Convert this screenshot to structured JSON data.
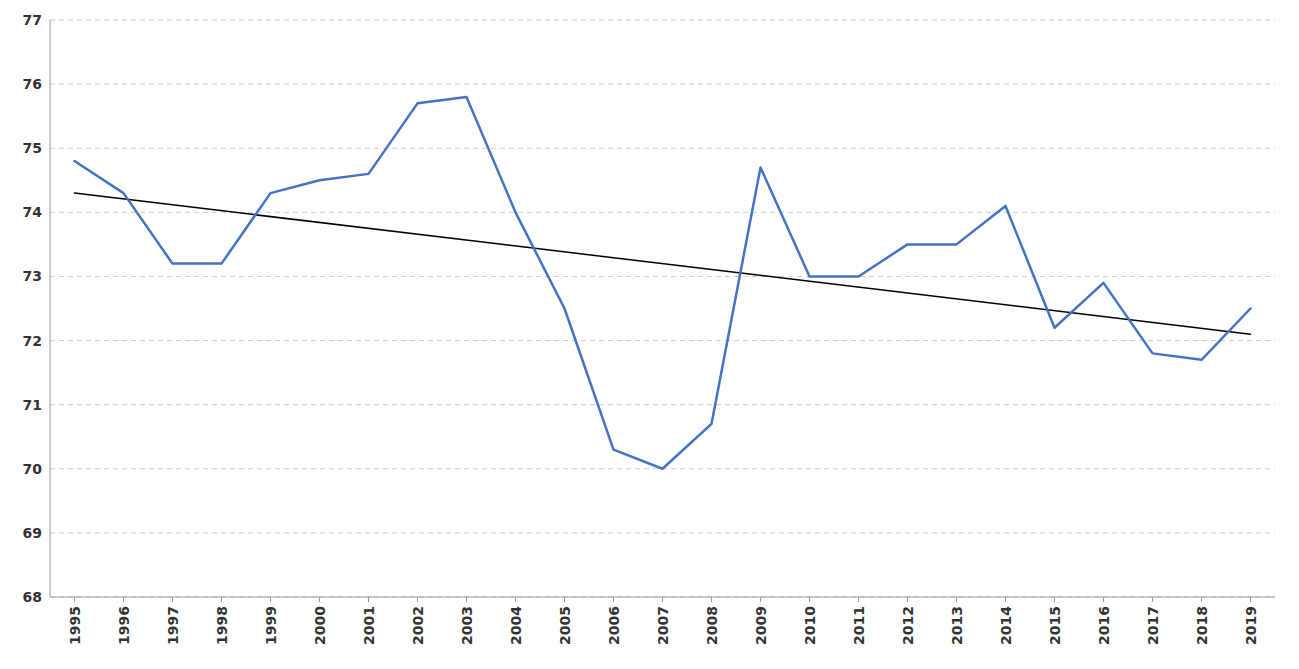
{
  "chart_data": {
    "type": "line",
    "x": [
      1995,
      1996,
      1997,
      1998,
      1999,
      2000,
      2001,
      2002,
      2003,
      2004,
      2005,
      2006,
      2007,
      2008,
      2009,
      2010,
      2011,
      2012,
      2013,
      2014,
      2015,
      2016,
      2017,
      2018,
      2019
    ],
    "xlim": [
      1994.5,
      2019.5
    ],
    "xticks": [
      1995,
      1996,
      1997,
      1998,
      1999,
      2000,
      2001,
      2002,
      2003,
      2004,
      2005,
      2006,
      2007,
      2008,
      2009,
      2010,
      2011,
      2012,
      2013,
      2014,
      2015,
      2016,
      2017,
      2018,
      2019
    ],
    "ylim": [
      68,
      77
    ],
    "yticks": [
      68,
      69,
      70,
      71,
      72,
      73,
      74,
      75,
      76,
      77
    ],
    "grid": true,
    "series": [
      {
        "color": "#4472C4",
        "values": [
          74.8,
          74.3,
          73.2,
          73.2,
          74.3,
          74.5,
          74.6,
          75.7,
          75.8,
          74.0,
          72.5,
          70.3,
          70.0,
          70.7,
          74.7,
          73.0,
          73.0,
          73.5,
          73.5,
          74.1,
          72.2,
          72.9,
          71.8,
          71.7,
          72.5
        ]
      },
      {
        "color": "#000000",
        "x": [
          1995,
          2019
        ],
        "values": [
          74.3,
          72.1
        ]
      }
    ]
  }
}
